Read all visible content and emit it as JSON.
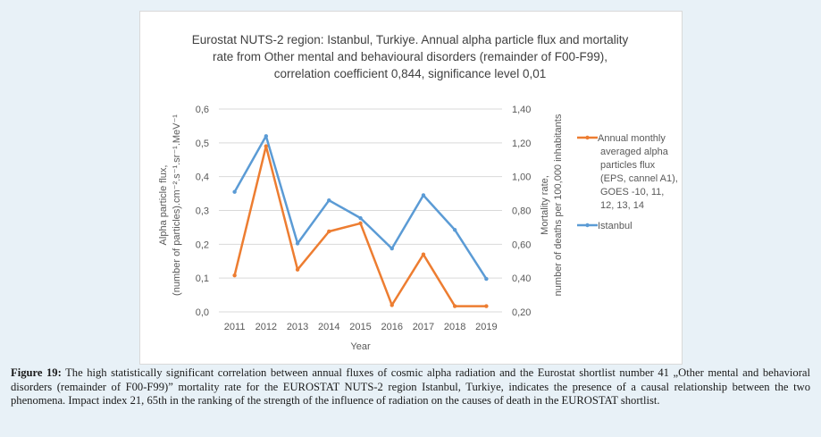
{
  "chart_data": {
    "type": "line",
    "title_lines": [
      "Eurostat NUTS-2 region: Istanbul, Turkiye. Annual alpha particle flux and mortality",
      "rate from Other mental and behavioural disorders (remainder of F00-F99),",
      "correlation coefficient 0,844, significance level 0,01"
    ],
    "xlabel": "Year",
    "categories": [
      "2011",
      "2012",
      "2013",
      "2014",
      "2015",
      "2016",
      "2017",
      "2018",
      "2019"
    ],
    "y_left": {
      "label_lines": [
        "Alpha particle flux,",
        "(number of particles).cm⁻².s⁻¹.sr⁻¹.MeV⁻¹"
      ],
      "range": [
        0,
        0.6
      ],
      "ticks": [
        "0,0",
        "0,1",
        "0,2",
        "0,3",
        "0,4",
        "0,5",
        "0,6"
      ]
    },
    "y_right": {
      "label_lines": [
        "Mortality rate,",
        "number of deaths per 100,000 inhabitants"
      ],
      "range": [
        0.2,
        1.4
      ],
      "ticks": [
        "0,20",
        "0,40",
        "0,60",
        "0,80",
        "1,00",
        "1,20",
        "1,40"
      ]
    },
    "series": [
      {
        "name_lines": [
          "Annual monthly",
          "averaged alpha",
          "particles flux",
          "(EPS, cannel A1),",
          "GOES -10, 11,",
          "12, 13, 14"
        ],
        "axis": "left",
        "color": "#ed7d31",
        "values": [
          0.108,
          0.49,
          0.125,
          0.238,
          0.262,
          0.02,
          0.17,
          0.017,
          0.017
        ]
      },
      {
        "name_lines": [
          "Istanbul"
        ],
        "axis": "right",
        "color": "#5b9bd5",
        "values": [
          0.91,
          1.24,
          0.605,
          0.86,
          0.755,
          0.575,
          0.89,
          0.685,
          0.395
        ]
      }
    ],
    "grid": true,
    "legend_position": "right"
  },
  "caption": {
    "label": "Figure 19:",
    "text": " The high statistically significant correlation between annual fluxes of cosmic alpha radiation and the Eurostat shortlist number 41 „Other mental and behavioral disorders (remainder of F00-F99)” mortality rate for the EUROSTAT NUTS-2 region Istanbul, Turkiye, indicates the presence of a causal relationship between the two phenomena. Impact index 21, 65th in the ranking of the strength of the influence of radiation on the causes of death in the EUROSTAT shortlist."
  }
}
